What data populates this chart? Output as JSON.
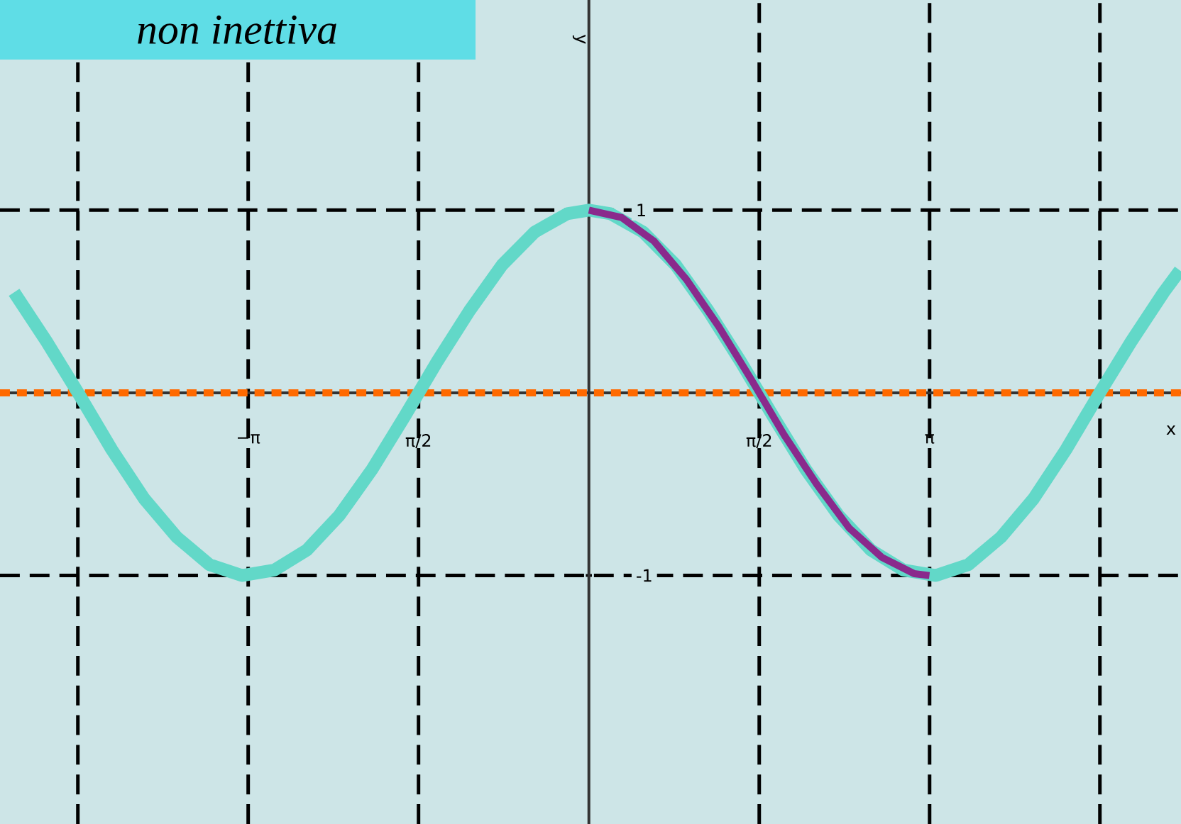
{
  "chart_data": {
    "type": "line",
    "title": "non inettiva",
    "xlabel": "x",
    "ylabel": "y",
    "xlim": [
      -5.43,
      5.46
    ],
    "ylim": [
      -2.36,
      2.15
    ],
    "xticks": [
      {
        "value": -3.1416,
        "label": "−π"
      },
      {
        "value": -1.5708,
        "label": "π/2"
      },
      {
        "value": 0,
        "label": null
      },
      {
        "value": 1.5708,
        "label": "π/2"
      },
      {
        "value": 3.1416,
        "label": "π"
      }
    ],
    "yticks": [
      -1,
      1
    ],
    "grid": true,
    "line_style": "solid",
    "marker": "none",
    "series": [
      {
        "color": "#62d8c8",
        "x": [
          -5.3,
          -5.0,
          -4.7,
          -4.4,
          -4.1,
          -3.8,
          -3.5,
          -3.2,
          -2.9,
          -2.6,
          -2.3,
          -2.0,
          -1.7,
          -1.4,
          -1.1,
          -0.8,
          -0.5,
          -0.2,
          0,
          0.2,
          0.5,
          0.8,
          1.1,
          1.4,
          1.7,
          2.0,
          2.3,
          2.6,
          2.9,
          3.2,
          3.5,
          3.8,
          4.1,
          4.4,
          4.7,
          5.0,
          5.3,
          5.45
        ],
        "values": [
          0.55,
          0.28,
          -0.01,
          -0.31,
          -0.58,
          -0.79,
          -0.94,
          -1.0,
          -0.97,
          -0.86,
          -0.67,
          -0.42,
          -0.13,
          0.17,
          0.45,
          0.7,
          0.88,
          0.98,
          1,
          0.98,
          0.88,
          0.7,
          0.45,
          0.17,
          -0.13,
          -0.42,
          -0.67,
          -0.86,
          -0.97,
          -1.0,
          -0.94,
          -0.79,
          -0.58,
          -0.31,
          -0.01,
          0.28,
          0.55,
          0.67
        ]
      },
      {
        "color": "#8a2a8c",
        "x": [
          0,
          0.3,
          0.6,
          0.9,
          1.2,
          1.5,
          1.8,
          2.1,
          2.4,
          2.7,
          3.0,
          3.14
        ],
        "values": [
          1,
          0.96,
          0.83,
          0.62,
          0.36,
          0.07,
          -0.23,
          -0.5,
          -0.74,
          -0.9,
          -0.99,
          -1
        ]
      }
    ],
    "ref_lines": [
      {
        "axis": "y",
        "value": 0,
        "color": "#ff6a00",
        "line_style": "dotted"
      },
      {
        "axis": "x",
        "value": -4.712,
        "color": "#000000",
        "line_style": "dashed"
      },
      {
        "axis": "x",
        "value": 4.712,
        "color": "#000000",
        "line_style": "dashed"
      }
    ]
  }
}
